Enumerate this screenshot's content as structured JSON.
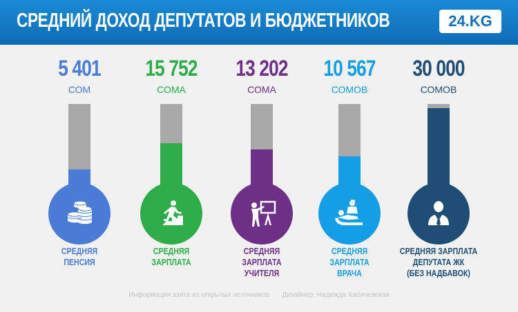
{
  "header": {
    "title": "СРЕДНИЙ ДОХОД ДЕПУТАТОВ И БЮДЖЕТНИКОВ",
    "logo": "24.KG"
  },
  "chart_data": {
    "type": "bar",
    "title": "СРЕДНИЙ ДОХОД ДЕПУТАТОВ И БЮДЖЕТНИКОВ",
    "ylim": [
      0,
      30000
    ],
    "items": [
      {
        "value": 5401,
        "value_label": "5 401",
        "unit": "СОМ",
        "caption_lines": [
          "СРЕДНЯЯ",
          "ПЕНСИЯ"
        ],
        "color": "#4a7bd6",
        "icon": "coins-icon"
      },
      {
        "value": 15752,
        "value_label": "15 752",
        "unit": "СОМА",
        "caption_lines": [
          "СРЕДНЯЯ",
          "ЗАРПЛАТА"
        ],
        "color": "#2fac4a",
        "icon": "stairs-climber-icon"
      },
      {
        "value": 13202,
        "value_label": "13 202",
        "unit": "СОМА",
        "caption_lines": [
          "СРЕДНЯЯ",
          "ЗАРПЛАТА",
          "УЧИТЕЛЯ"
        ],
        "color": "#6e2f86",
        "icon": "teacher-board-icon"
      },
      {
        "value": 10567,
        "value_label": "10 567",
        "unit": "СОМОВ",
        "caption_lines": [
          "СРЕДНЯЯ",
          "ЗАРПЛАТА",
          "ВРАЧА"
        ],
        "color": "#159ee6",
        "icon": "doctor-patient-icon"
      },
      {
        "value": 30000,
        "value_label": "30 000",
        "unit": "СОМОВ",
        "caption_lines": [
          "СРЕДНЯЯ ЗАРПЛАТА",
          "ДЕПУТАТА ЖК",
          "(БЕЗ НАДБАВОК)"
        ],
        "color": "#1f4d73",
        "icon": "businessman-icon"
      }
    ]
  },
  "footer": {
    "source": "Информация взята из открытых источников",
    "designer": "Дизайнер: Надежда Хабичевская"
  }
}
